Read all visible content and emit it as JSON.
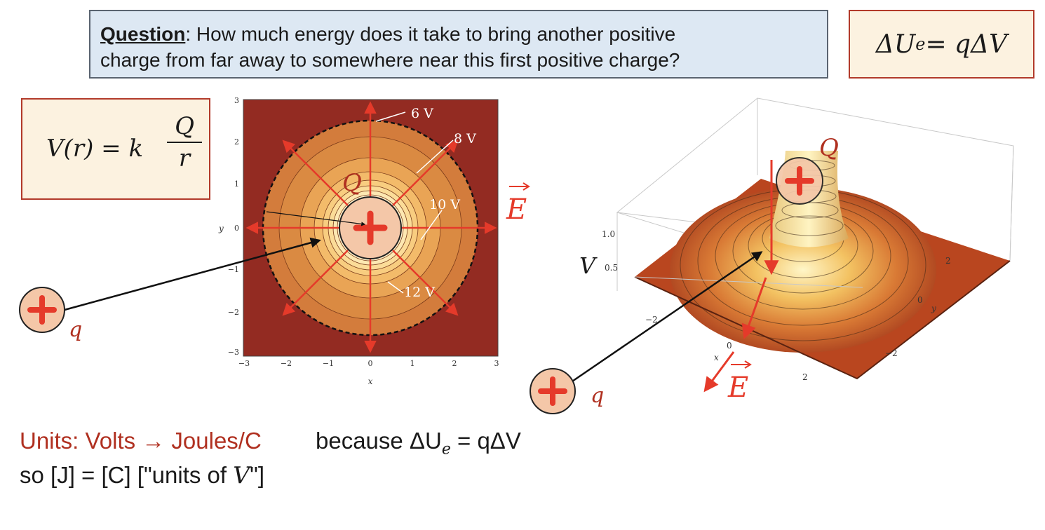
{
  "question": {
    "label": "Question",
    "text_line1": ": How much energy does it take to bring another positive",
    "text_line2": "charge from far away to somewhere near this first positive charge?"
  },
  "equation_energy": {
    "lhs": "ΔU",
    "subscript": "e",
    "rhs": " = qΔV"
  },
  "equation_potential": {
    "lhs": "V(r) = k",
    "numerator": "Q",
    "denominator": "r"
  },
  "contour_plot": {
    "y_label": "y",
    "x_label": "x",
    "y_ticks": [
      "3",
      "2",
      "1",
      "0",
      "−1",
      "−2",
      "−3"
    ],
    "x_ticks": [
      "−3",
      "−2",
      "−1",
      "0",
      "1",
      "2",
      "3"
    ],
    "contour_labels": [
      "6 V",
      "8 V",
      "10 V",
      "12 V"
    ],
    "source_charge_label": "Q",
    "field_label": "E"
  },
  "surface_plot": {
    "v_label": "V",
    "v_ticks": [
      "1.0",
      "0.5"
    ],
    "y_ticks": [
      "2",
      "0",
      "−2"
    ],
    "y_label": "y",
    "x_ticks": [
      "−2",
      "0",
      "2"
    ],
    "x_label": "x",
    "source_charge_label": "Q",
    "field_label": "E"
  },
  "test_charge_label": "q",
  "units": {
    "prefix": "Units:  Volts → Joules/C",
    "because": "because ΔU",
    "because_sub": "e",
    "because_rhs": " = qΔV",
    "line2": "so [J] = [C] [\"units of ",
    "line2_var": "V",
    "line2_end": "\"]"
  },
  "colors": {
    "accent_red": "#e53a2a",
    "dark_red": "#8e2a1e",
    "box_border": "#b23a2a"
  }
}
